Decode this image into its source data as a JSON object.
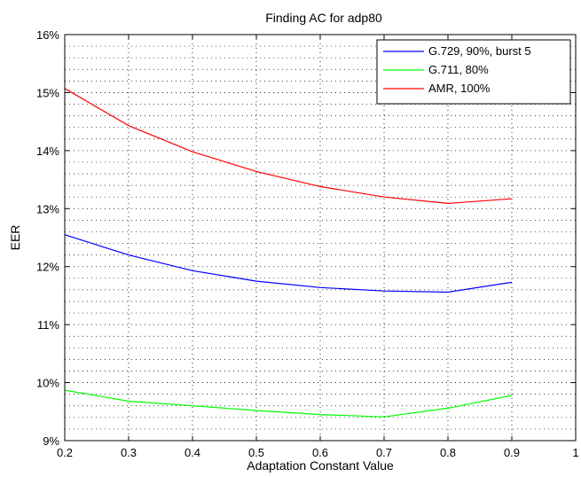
{
  "chart_data": {
    "type": "line",
    "title": "Finding AC for adp80",
    "xlabel": "Adaptation Constant Value",
    "ylabel": "EER",
    "xlim": [
      0.2,
      1.0
    ],
    "ylim": [
      9,
      16
    ],
    "x_ticks": [
      "0.2",
      "0.3",
      "0.4",
      "0.5",
      "0.6",
      "0.7",
      "0.8",
      "0.9",
      "1"
    ],
    "y_ticks": [
      "9%",
      "10%",
      "11%",
      "12%",
      "13%",
      "14%",
      "15%",
      "16%"
    ],
    "y_unit": "%",
    "grid": true,
    "grid_style": "dotted",
    "minor_grid": true,
    "legend_position": "top-right",
    "x": [
      0.2,
      0.3,
      0.4,
      0.5,
      0.6,
      0.7,
      0.8,
      0.9
    ],
    "series": [
      {
        "name": "G.729, 90%, burst 5",
        "color": "#0000ff",
        "values": [
          12.55,
          12.2,
          11.93,
          11.75,
          11.64,
          11.58,
          11.56,
          11.73
        ]
      },
      {
        "name": "G.711, 80%",
        "color": "#00ff00",
        "values": [
          9.87,
          9.68,
          9.6,
          9.52,
          9.45,
          9.41,
          9.56,
          9.78
        ]
      },
      {
        "name": "AMR, 100%",
        "color": "#ff0000",
        "values": [
          15.07,
          14.43,
          13.98,
          13.64,
          13.38,
          13.2,
          13.09,
          13.17
        ]
      }
    ]
  }
}
